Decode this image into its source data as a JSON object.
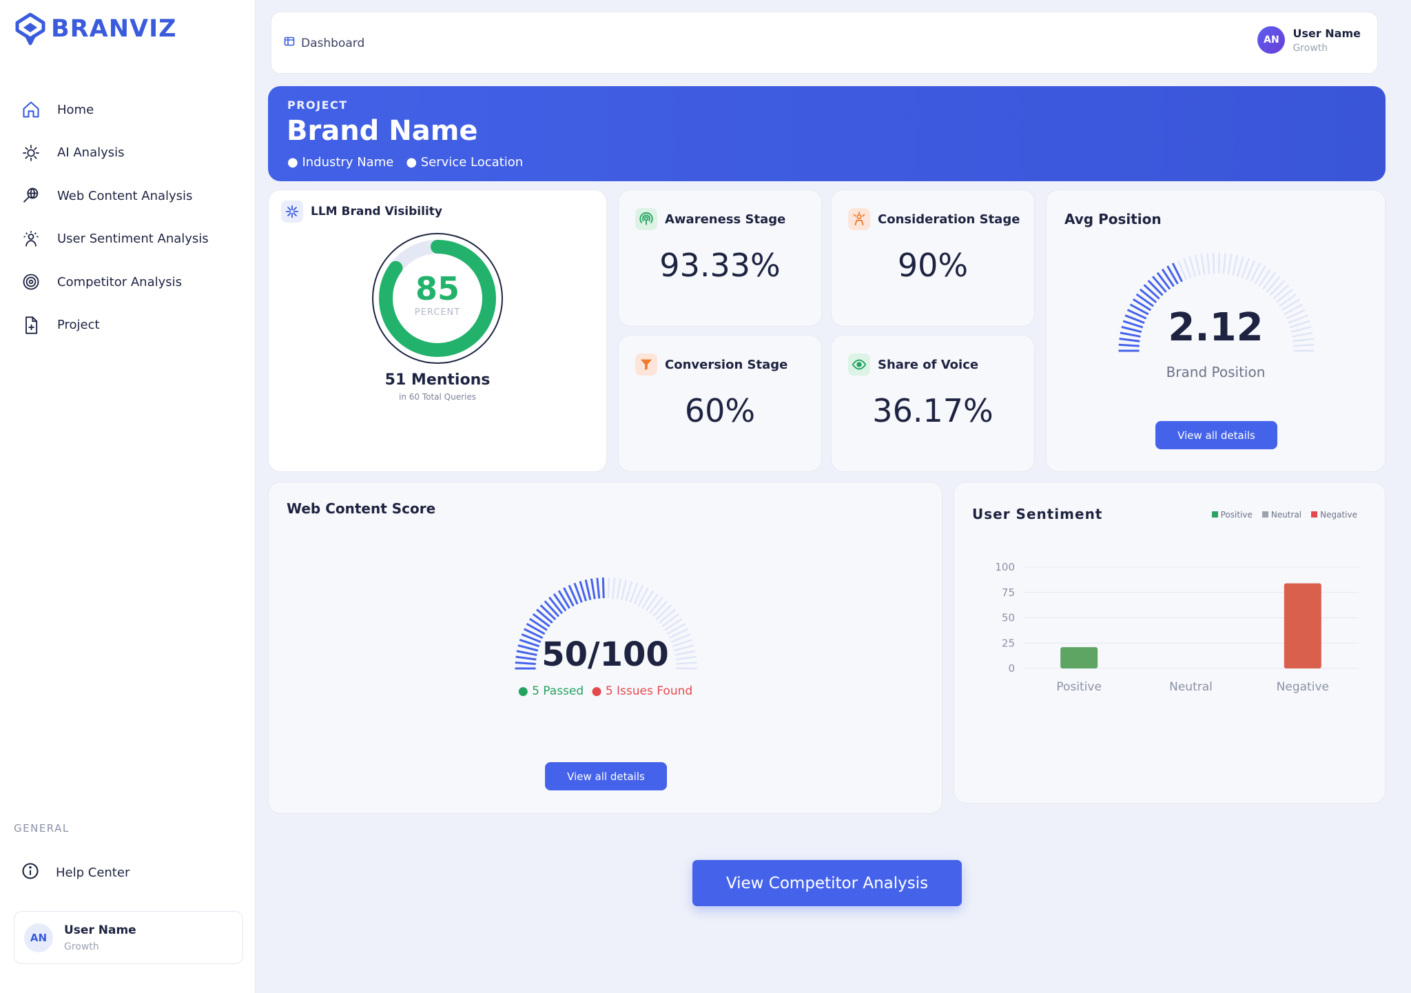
{
  "brand": {
    "logo_text": "BRANVIZ"
  },
  "sidebar": {
    "items": [
      {
        "label": "Home",
        "icon": "home-icon"
      },
      {
        "label": "AI Analysis",
        "icon": "brain-icon"
      },
      {
        "label": "Web Content Analysis",
        "icon": "globe-search-icon"
      },
      {
        "label": "User Sentiment Analysis",
        "icon": "user-sentiment-icon"
      },
      {
        "label": "Competitor Analysis",
        "icon": "target-icon"
      },
      {
        "label": "Project",
        "icon": "file-plus-icon"
      }
    ],
    "section_label": "GENERAL",
    "help_label": "Help Center",
    "user": {
      "initials": "AN",
      "name": "User Name",
      "role": "Growth"
    }
  },
  "header": {
    "breadcrumb": "Dashboard",
    "user": {
      "initials": "AN",
      "name": "User Name",
      "role": "Growth"
    }
  },
  "project": {
    "label": "PROJECT",
    "name": "Brand Name",
    "industry": "Industry Name",
    "location": "Service Location"
  },
  "llm": {
    "title": "LLM Brand Visibility",
    "score": "85",
    "score_fraction": 0.85,
    "unit": "PERCENT",
    "mentions": "51 Mentions",
    "queries": "in 60 Total Queries"
  },
  "stages": {
    "awareness": {
      "label": "Awareness Stage",
      "value": "93.33%"
    },
    "consideration": {
      "label": "Consideration Stage",
      "value": "90%"
    },
    "conversion": {
      "label": "Conversion Stage",
      "value": "60%"
    },
    "share": {
      "label": "Share of Voice",
      "value": "36.17%"
    }
  },
  "avg_position": {
    "title": "Avg Position",
    "value": "2.12",
    "fill_fraction": 0.36,
    "label": "Brand Position",
    "button": "View all details"
  },
  "web_content": {
    "title": "Web Content Score",
    "score": "50/100",
    "fill_fraction": 0.5,
    "passed": "5 Passed",
    "issues": "5 Issues Found",
    "button": "View all details"
  },
  "sentiment": {
    "title": "User Sentiment",
    "legend": [
      "Positive",
      "Neutral",
      "Negative"
    ]
  },
  "cta": {
    "label": "View Competitor Analysis"
  },
  "colors": {
    "accent": "#4563ea",
    "positive": "#5ea463",
    "neutral": "#9ca3af",
    "negative": "#d8604d",
    "gauge_green": "#22b26b"
  },
  "chart_data": {
    "type": "bar",
    "title": "User Sentiment",
    "categories": [
      "Positive",
      "Neutral",
      "Negative"
    ],
    "series": [
      {
        "name": "Sentiment",
        "values": [
          21,
          0,
          84
        ]
      }
    ],
    "ylim": [
      0,
      100
    ],
    "yticks": [
      0,
      25,
      50,
      75,
      100
    ],
    "colors": [
      "#5ea463",
      "#9ca3af",
      "#d8604d"
    ],
    "grid": true,
    "legend": "top-right"
  }
}
